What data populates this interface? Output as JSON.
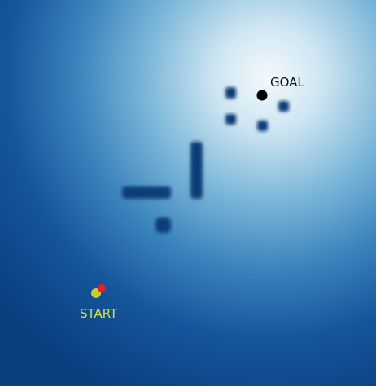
{
  "labels": {
    "goal": "GOAL",
    "start": "START"
  },
  "colors": {
    "field_center": "#f2f8fb",
    "field_mid": "#7cb7d9",
    "field_edge": "#0a3f80",
    "obstacle": "#0d3d78",
    "goal_marker": "#000000",
    "goal_label": "#111111",
    "start_marker": "#c6cf2c",
    "agent_marker": "#e0202a",
    "start_label": "#d8e23a"
  },
  "icons": {
    "goal": "black-dot-marker",
    "start": "yellow-dot-marker",
    "agent": "red-dot-marker"
  }
}
